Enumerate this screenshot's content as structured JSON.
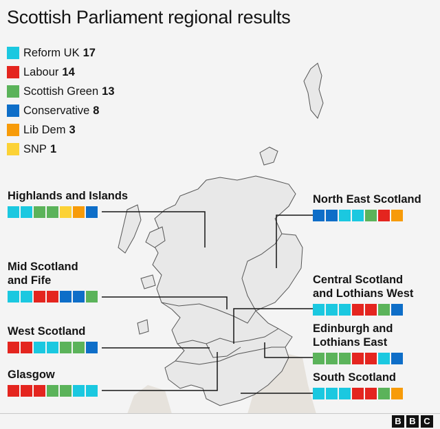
{
  "title": "Scottish Parliament regional results",
  "colors": {
    "reform": "#1bc8e0",
    "labour": "#e4251f",
    "green": "#5bb35a",
    "conservative": "#0e6ec8",
    "libdem": "#f79b09",
    "snp": "#fcd236"
  },
  "legend": [
    {
      "label": "Reform UK",
      "seats": "17",
      "party": "reform"
    },
    {
      "label": "Labour",
      "seats": "14",
      "party": "labour"
    },
    {
      "label": "Scottish Green",
      "seats": "13",
      "party": "green"
    },
    {
      "label": "Conservative",
      "seats": "8",
      "party": "conservative"
    },
    {
      "label": "Lib Dem",
      "seats": "3",
      "party": "libdem"
    },
    {
      "label": "SNP",
      "seats": "1",
      "party": "snp"
    }
  ],
  "regions": [
    {
      "key": "highlands",
      "name": "Highlands and Islands",
      "seats": [
        "reform",
        "reform",
        "green",
        "green",
        "snp",
        "libdem",
        "conservative"
      ]
    },
    {
      "key": "mid",
      "name": "Mid Scotland\nand Fife",
      "seats": [
        "reform",
        "reform",
        "labour",
        "labour",
        "conservative",
        "conservative",
        "green"
      ]
    },
    {
      "key": "west",
      "name": "West Scotland",
      "seats": [
        "labour",
        "labour",
        "reform",
        "reform",
        "green",
        "green",
        "conservative"
      ]
    },
    {
      "key": "glasgow",
      "name": "Glasgow",
      "seats": [
        "labour",
        "labour",
        "labour",
        "green",
        "green",
        "reform",
        "reform"
      ]
    },
    {
      "key": "northeast",
      "name": "North East Scotland",
      "seats": [
        "conservative",
        "conservative",
        "reform",
        "reform",
        "green",
        "labour",
        "libdem"
      ]
    },
    {
      "key": "central",
      "name": "Central Scotland\nand Lothians West",
      "seats": [
        "reform",
        "reform",
        "reform",
        "labour",
        "labour",
        "green",
        "conservative"
      ]
    },
    {
      "key": "edinburgh",
      "name": "Edinburgh and\nLothians East",
      "seats": [
        "green",
        "green",
        "green",
        "labour",
        "labour",
        "reform",
        "conservative"
      ]
    },
    {
      "key": "south",
      "name": "South Scotland",
      "seats": [
        "reform",
        "reform",
        "reform",
        "labour",
        "labour",
        "green",
        "libdem"
      ]
    }
  ],
  "logo": "BBC"
}
